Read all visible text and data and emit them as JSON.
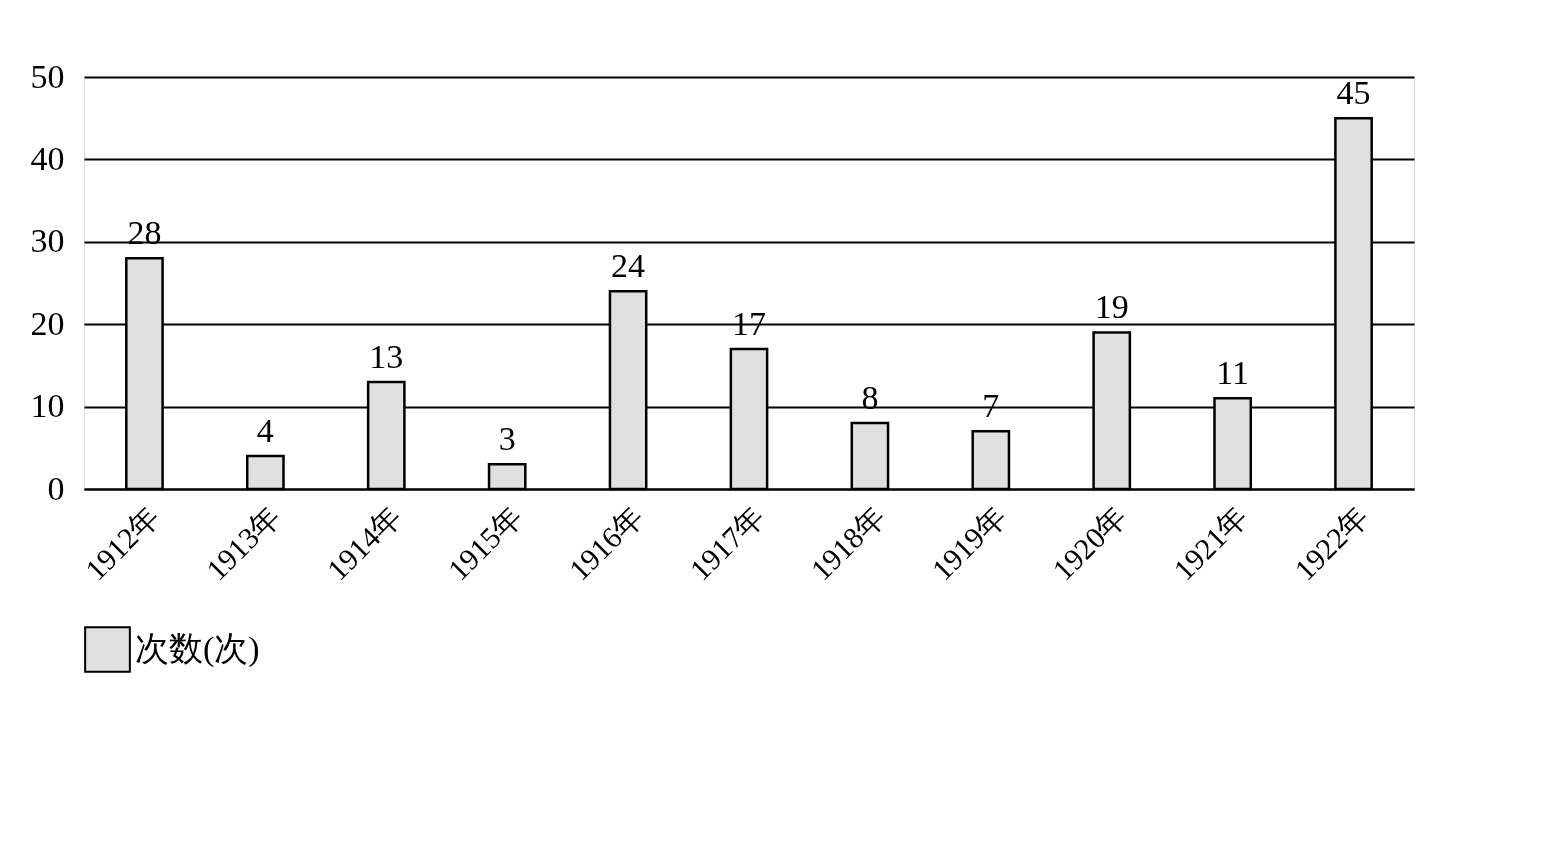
{
  "chart_data": {
    "type": "bar",
    "categories": [
      "1912年",
      "1913年",
      "1914年",
      "1915年",
      "1916年",
      "1917年",
      "1918年",
      "1919年",
      "1920年",
      "1921年",
      "1922年"
    ],
    "series": [
      {
        "name": "次数(次)",
        "color": "#e0e0e0",
        "values": [
          28,
          4,
          13,
          3,
          24,
          17,
          8,
          7,
          19,
          11,
          45
        ]
      }
    ],
    "ylim": [
      0,
      50
    ],
    "yticks": [
      0,
      10,
      20,
      30,
      40,
      50
    ],
    "grid": "y",
    "legend": "bottom",
    "data_labels": true
  }
}
